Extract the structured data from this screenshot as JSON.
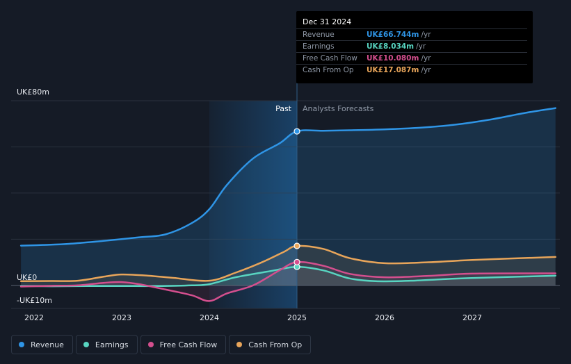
{
  "chart_data": {
    "type": "line",
    "x_labels": [
      "2022",
      "2023",
      "2024",
      "2025",
      "2026",
      "2027"
    ],
    "y_labels": [
      "UK£80m",
      "UK£0",
      "-UK£10m"
    ],
    "ylim": [
      -10,
      80
    ],
    "xlim": [
      2021.85,
      2027.95
    ],
    "past_label": "Past",
    "forecast_label": "Analysts Forecasts",
    "divider_x": 2025.0,
    "series": [
      {
        "name": "Revenue",
        "color": "#2f95e6",
        "points": [
          [
            2021.85,
            17.2
          ],
          [
            2022.1,
            17.5
          ],
          [
            2022.4,
            18.0
          ],
          [
            2022.8,
            19.3
          ],
          [
            2023.2,
            20.8
          ],
          [
            2023.5,
            22.1
          ],
          [
            2023.8,
            27.0
          ],
          [
            2024.0,
            33.0
          ],
          [
            2024.2,
            43.5
          ],
          [
            2024.5,
            55.0
          ],
          [
            2024.8,
            61.5
          ],
          [
            2025.0,
            66.744
          ],
          [
            2025.3,
            67.0
          ],
          [
            2025.6,
            67.2
          ],
          [
            2026.0,
            67.6
          ],
          [
            2026.4,
            68.3
          ],
          [
            2026.8,
            69.6
          ],
          [
            2027.2,
            71.8
          ],
          [
            2027.6,
            74.7
          ],
          [
            2027.95,
            76.8
          ]
        ]
      },
      {
        "name": "Earnings",
        "color": "#58d5c1",
        "points": [
          [
            2021.85,
            -0.3
          ],
          [
            2022.2,
            -0.4
          ],
          [
            2022.6,
            -0.3
          ],
          [
            2023.0,
            -0.3
          ],
          [
            2023.4,
            -0.3
          ],
          [
            2023.8,
            0.0
          ],
          [
            2024.0,
            0.5
          ],
          [
            2024.3,
            3.5
          ],
          [
            2024.7,
            6.2
          ],
          [
            2025.0,
            8.034
          ],
          [
            2025.3,
            6.5
          ],
          [
            2025.6,
            3.0
          ],
          [
            2025.9,
            1.8
          ],
          [
            2026.3,
            2.0
          ],
          [
            2026.8,
            2.9
          ],
          [
            2027.3,
            3.5
          ],
          [
            2027.95,
            4.2
          ]
        ]
      },
      {
        "name": "Free Cash Flow",
        "color": "#d44f8e",
        "points": [
          [
            2021.85,
            -0.5
          ],
          [
            2022.2,
            -0.2
          ],
          [
            2022.5,
            0.0
          ],
          [
            2022.8,
            1.1
          ],
          [
            2023.0,
            1.4
          ],
          [
            2023.2,
            0.5
          ],
          [
            2023.5,
            -1.8
          ],
          [
            2023.8,
            -4.3
          ],
          [
            2024.0,
            -6.8
          ],
          [
            2024.2,
            -3.5
          ],
          [
            2024.5,
            0.0
          ],
          [
            2024.8,
            6.5
          ],
          [
            2025.0,
            10.08
          ],
          [
            2025.3,
            8.5
          ],
          [
            2025.6,
            5.0
          ],
          [
            2026.0,
            3.5
          ],
          [
            2026.5,
            4.1
          ],
          [
            2027.0,
            5.1
          ],
          [
            2027.95,
            5.2
          ]
        ]
      },
      {
        "name": "Cash From Op",
        "color": "#e8a55a",
        "points": [
          [
            2021.85,
            1.8
          ],
          [
            2022.2,
            1.9
          ],
          [
            2022.5,
            2.0
          ],
          [
            2022.8,
            3.8
          ],
          [
            2023.0,
            4.7
          ],
          [
            2023.3,
            4.2
          ],
          [
            2023.6,
            3.2
          ],
          [
            2024.0,
            2.0
          ],
          [
            2024.3,
            5.5
          ],
          [
            2024.6,
            10.0
          ],
          [
            2024.85,
            14.5
          ],
          [
            2025.0,
            17.087
          ],
          [
            2025.3,
            15.8
          ],
          [
            2025.6,
            11.8
          ],
          [
            2026.0,
            9.6
          ],
          [
            2026.5,
            10.0
          ],
          [
            2027.0,
            11.0
          ],
          [
            2027.95,
            12.3
          ]
        ]
      }
    ]
  },
  "tooltip": {
    "date": "Dec 31 2024",
    "unit": "/yr",
    "rows": [
      {
        "label": "Revenue",
        "value": "UK£66.744m",
        "color": "#2f95e6"
      },
      {
        "label": "Earnings",
        "value": "UK£8.034m",
        "color": "#58d5c1"
      },
      {
        "label": "Free Cash Flow",
        "value": "UK£10.080m",
        "color": "#d44f8e"
      },
      {
        "label": "Cash From Op",
        "value": "UK£17.087m",
        "color": "#e8a55a"
      }
    ]
  },
  "legend": [
    {
      "label": "Revenue",
      "color": "#2f95e6"
    },
    {
      "label": "Earnings",
      "color": "#58d5c1"
    },
    {
      "label": "Free Cash Flow",
      "color": "#d44f8e"
    },
    {
      "label": "Cash From Op",
      "color": "#e8a55a"
    }
  ]
}
